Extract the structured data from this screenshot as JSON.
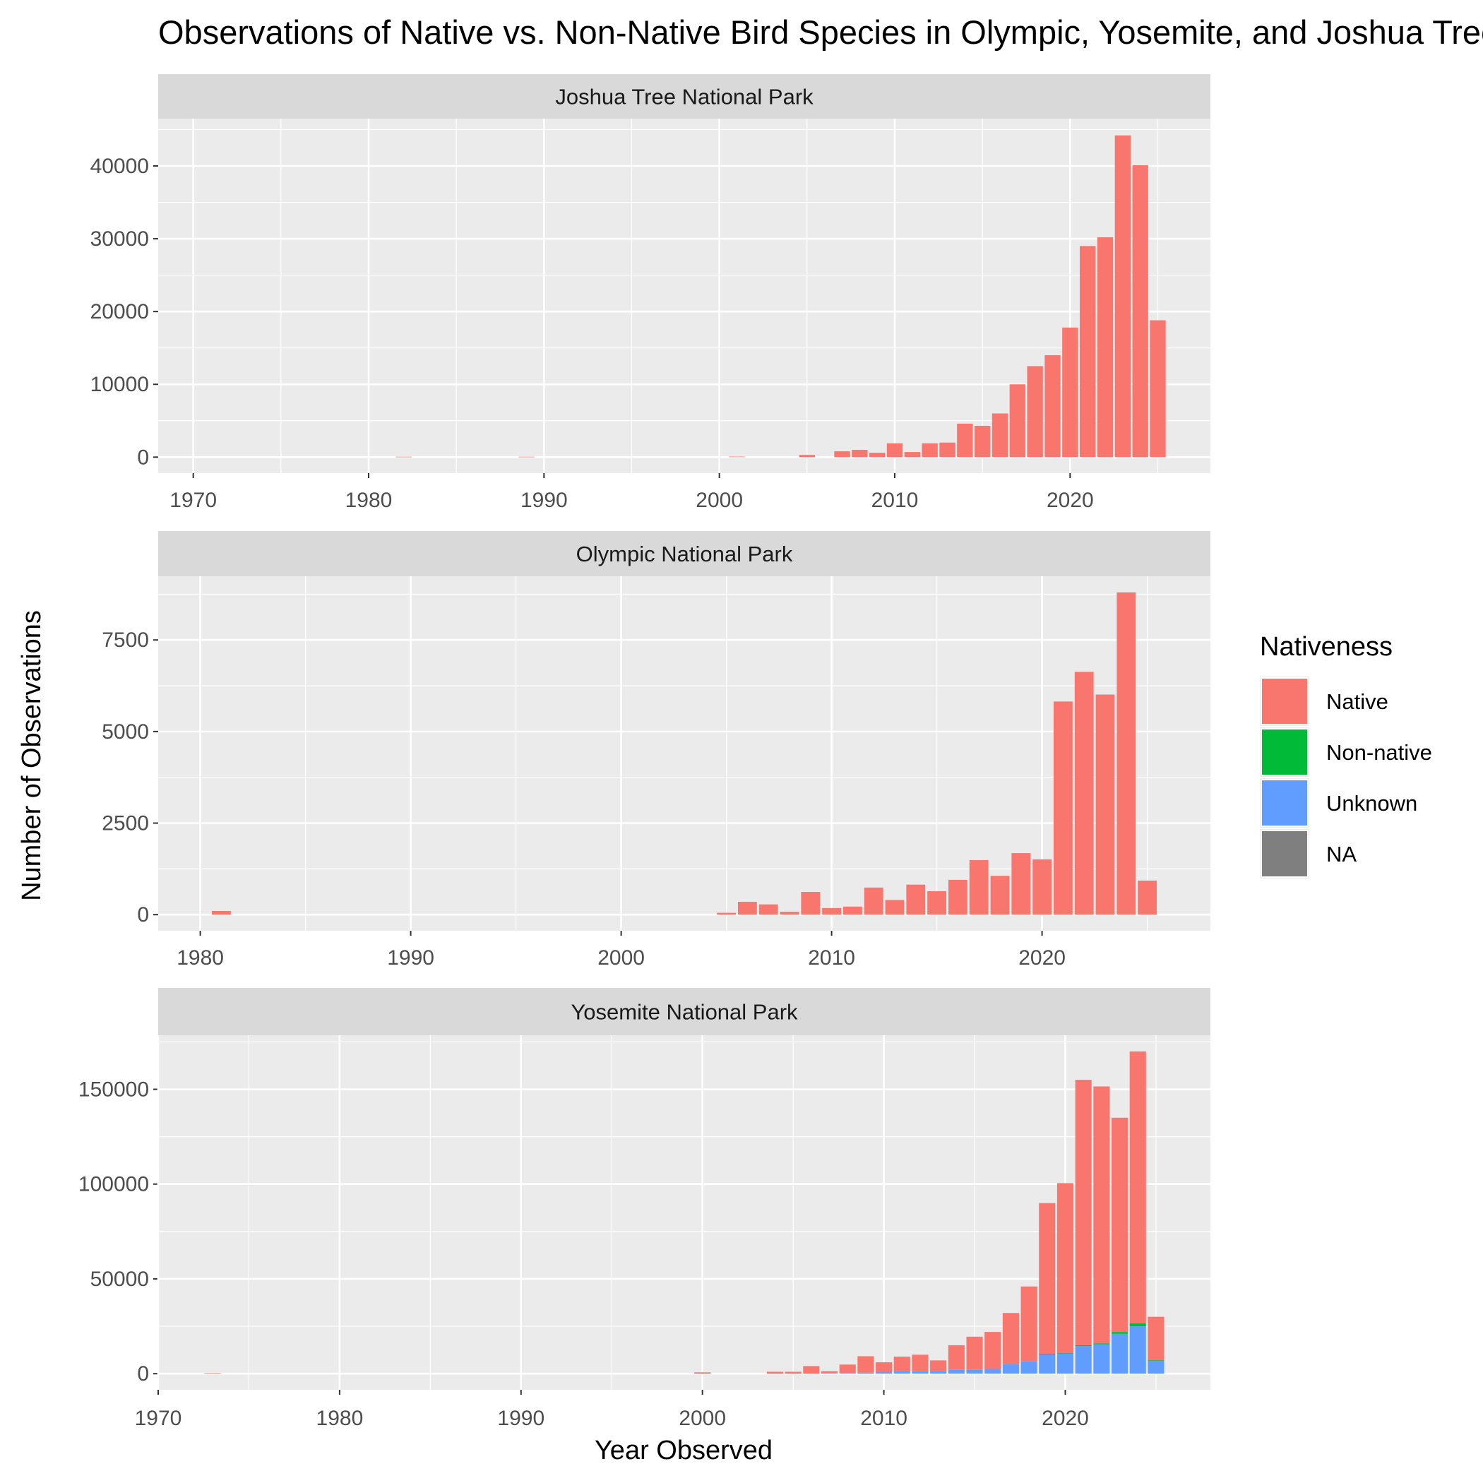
{
  "chart_data": {
    "type": "bar",
    "stacked": true,
    "title": "Observations of Native vs. Non-Native Bird Species in Olympic, Yosemite, and Joshua Tree National Parks",
    "xlabel": "Year Observed",
    "ylabel": "Number of Observations",
    "legend": {
      "title": "Nativeness",
      "placement": "right",
      "entries": [
        {
          "name": "Native",
          "color": "#F8766D"
        },
        {
          "name": "Non-native",
          "color": "#00BA38"
        },
        {
          "name": "Unknown",
          "color": "#619CFF"
        },
        {
          "name": "NA",
          "color": "#7F7F7F"
        }
      ]
    },
    "colors": {
      "panel_bg": "#EBEBEB",
      "strip_bg": "#D9D9D9",
      "grid": "#FFFFFF",
      "text": "#4D4D4D"
    },
    "panels": [
      {
        "title": "Joshua Tree National Park",
        "xlim": [
          1968.0,
          2028.0
        ],
        "xticks": [
          1970,
          1980,
          1990,
          2000,
          2010,
          2020
        ],
        "ylim": [
          -2200,
          46500
        ],
        "yticks": [
          0,
          10000,
          20000,
          30000,
          40000
        ],
        "years": [
          1982,
          1989,
          2001,
          2005,
          2007,
          2008,
          2009,
          2010,
          2011,
          2012,
          2013,
          2014,
          2015,
          2016,
          2017,
          2018,
          2019,
          2020,
          2021,
          2022,
          2023,
          2024,
          2025
        ],
        "series": [
          {
            "name": "Native",
            "values": [
              60,
              60,
              80,
              300,
              800,
              1000,
              600,
              1900,
              700,
              1900,
              2000,
              4600,
              4300,
              6000,
              10000,
              12500,
              14000,
              17800,
              29000,
              30200,
              44200,
              40100,
              18800
            ]
          },
          {
            "name": "Non-native",
            "values": [
              0,
              0,
              0,
              0,
              0,
              0,
              0,
              0,
              0,
              0,
              0,
              0,
              0,
              0,
              0,
              0,
              0,
              0,
              0,
              0,
              0,
              0,
              0
            ]
          },
          {
            "name": "Unknown",
            "values": [
              0,
              0,
              0,
              0,
              0,
              0,
              0,
              0,
              0,
              0,
              0,
              0,
              0,
              0,
              0,
              0,
              0,
              0,
              0,
              0,
              0,
              0,
              0
            ]
          },
          {
            "name": "NA",
            "values": [
              0,
              0,
              0,
              0,
              0,
              0,
              0,
              0,
              0,
              0,
              0,
              0,
              0,
              0,
              0,
              0,
              0,
              0,
              0,
              0,
              0,
              0,
              0
            ]
          }
        ]
      },
      {
        "title": "Olympic National Park",
        "xlim": [
          1978.0,
          2028.0
        ],
        "xticks": [
          1980,
          1990,
          2000,
          2010,
          2020
        ],
        "ylim": [
          -440,
          9240
        ],
        "yticks": [
          0,
          2500,
          5000,
          7500
        ],
        "years": [
          1981,
          2005,
          2006,
          2007,
          2008,
          2009,
          2010,
          2011,
          2012,
          2013,
          2014,
          2015,
          2016,
          2017,
          2018,
          2019,
          2020,
          2021,
          2022,
          2023,
          2024,
          2025
        ],
        "series": [
          {
            "name": "Native",
            "values": [
              100,
              50,
              350,
              280,
              80,
              620,
              180,
              220,
              740,
              400,
              820,
              640,
              950,
              1490,
              1060,
              1680,
              1510,
              5820,
              6630,
              6010,
              8800,
              930
            ]
          },
          {
            "name": "Non-native",
            "values": [
              0,
              0,
              0,
              0,
              0,
              0,
              0,
              0,
              0,
              0,
              0,
              0,
              0,
              0,
              0,
              0,
              0,
              0,
              0,
              0,
              0,
              0
            ]
          },
          {
            "name": "Unknown",
            "values": [
              0,
              0,
              0,
              0,
              0,
              0,
              0,
              0,
              0,
              0,
              0,
              0,
              0,
              0,
              0,
              0,
              0,
              0,
              0,
              0,
              0,
              0
            ]
          },
          {
            "name": "NA",
            "values": [
              0,
              0,
              0,
              0,
              0,
              0,
              0,
              0,
              0,
              0,
              0,
              0,
              0,
              0,
              0,
              0,
              0,
              0,
              0,
              0,
              0,
              0
            ]
          }
        ]
      },
      {
        "title": "Yosemite National Park",
        "xlim": [
          1970.0,
          2028.0
        ],
        "xticks": [
          1970,
          1980,
          1990,
          2000,
          2010,
          2020
        ],
        "ylim": [
          -8500,
          178500
        ],
        "yticks": [
          0,
          50000,
          100000,
          150000
        ],
        "years": [
          1973,
          2000,
          2004,
          2005,
          2006,
          2007,
          2008,
          2009,
          2010,
          2011,
          2012,
          2013,
          2014,
          2015,
          2016,
          2017,
          2018,
          2019,
          2020,
          2021,
          2022,
          2023,
          2024,
          2025
        ],
        "series": [
          {
            "name": "Native",
            "values": [
              300,
              700,
              1000,
              1000,
              4000,
              1000,
              4500,
              8500,
              5000,
              7500,
              8500,
              5500,
              13000,
              17500,
              19500,
              27000,
              39500,
              79500,
              89500,
              140000,
              135500,
              113000,
              143500,
              22900
            ]
          },
          {
            "name": "Non-native",
            "values": [
              0,
              0,
              0,
              0,
              0,
              0,
              0,
              0,
              0,
              0,
              0,
              0,
              0,
              0,
              0,
              0,
              0,
              200,
              300,
              500,
              500,
              1000,
              1500,
              200
            ]
          },
          {
            "name": "Unknown",
            "values": [
              0,
              0,
              0,
              0,
              0,
              300,
              300,
              700,
              1000,
              1500,
              1500,
              1500,
              2000,
              2000,
              2500,
              5000,
              6500,
              10300,
              10700,
              14500,
              15500,
              21000,
              25000,
              6900
            ]
          },
          {
            "name": "NA",
            "values": [
              0,
              0,
              0,
              0,
              0,
              0,
              0,
              0,
              0,
              0,
              0,
              0,
              0,
              0,
              0,
              0,
              0,
              0,
              0,
              0,
              0,
              0,
              0,
              0
            ]
          }
        ]
      }
    ]
  }
}
